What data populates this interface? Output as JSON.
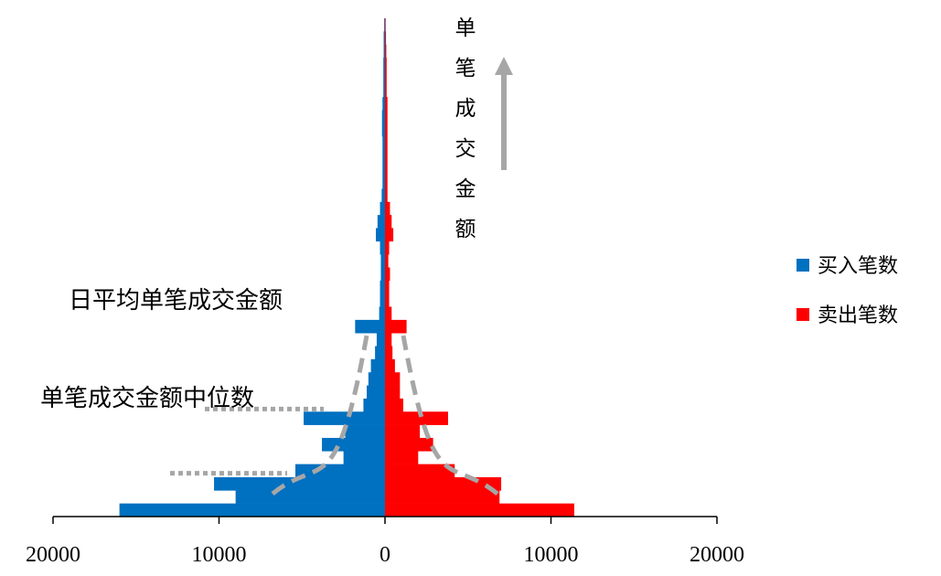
{
  "chart_data": {
    "type": "bar",
    "orientation": "horizontal-mirrored",
    "ylabel": "单笔成交金额",
    "xlim": [
      -20000,
      20000
    ],
    "x_ticks": [
      {
        "value": -20000,
        "label": "20000"
      },
      {
        "value": -10000,
        "label": "10000"
      },
      {
        "value": 0,
        "label": "0"
      },
      {
        "value": 10000,
        "label": "10000"
      },
      {
        "value": 20000,
        "label": "20000"
      }
    ],
    "legend_position": "right",
    "series": [
      {
        "name": "买入笔数",
        "color": "#0070C0",
        "direction": "left",
        "values": [
          16000,
          9000,
          10300,
          5400,
          2500,
          3800,
          2400,
          4900,
          1300,
          1100,
          1000,
          850,
          600,
          500,
          1800,
          350,
          300,
          300,
          250,
          250,
          300,
          550,
          450,
          300,
          200,
          150,
          150,
          150,
          150,
          180,
          180,
          150,
          100,
          100,
          100,
          80,
          80,
          50
        ]
      },
      {
        "name": "卖出笔数",
        "color": "#FF0000",
        "direction": "right",
        "values": [
          11400,
          6900,
          7000,
          4200,
          2000,
          2900,
          2100,
          3800,
          1100,
          900,
          900,
          600,
          450,
          400,
          1300,
          400,
          250,
          250,
          300,
          200,
          250,
          500,
          400,
          300,
          150,
          150,
          150,
          150,
          150,
          150,
          150,
          150,
          100,
          100,
          100,
          80,
          60,
          40
        ]
      }
    ],
    "annotations": [
      {
        "text": "日平均单笔成交金额",
        "level": 8.2
      },
      {
        "text": "单笔成交金额中位数",
        "level": 3.3
      }
    ],
    "envelope_curve": {
      "style": "gray-dashed",
      "peak_level": 13.8,
      "base_level": 1.5,
      "base_halfwidth": 7000
    }
  }
}
